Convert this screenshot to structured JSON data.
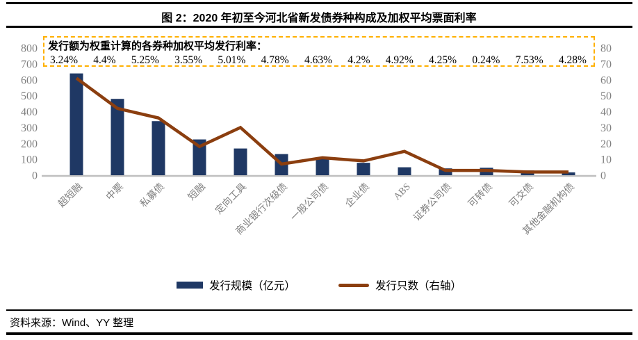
{
  "figure": {
    "title": "图 2：2020 年初至今河北省新发债券种构成及加权平均票面利率",
    "source": "资料来源：Wind、YY 整理"
  },
  "annotation": {
    "title": "发行额为权重计算的各券种加权平均发行利率：",
    "rates": [
      "3.24%",
      "4.4%",
      "5.25%",
      "3.55%",
      "5.01%",
      "4.78%",
      "4.63%",
      "4.2%",
      "4.92%",
      "4.25%",
      "0.24%",
      "7.53%",
      "4.28%"
    ]
  },
  "legend": [
    {
      "label": "发行规模（亿元）",
      "type": "bar",
      "color": "#1F3864"
    },
    {
      "label": "发行只数（右轴）",
      "type": "line",
      "color": "#8B3E0F"
    }
  ],
  "chart_data": {
    "type": "bar",
    "subtype": "bar-line-combo",
    "categories": [
      "超短融",
      "中票",
      "私募债",
      "短融",
      "定向工具",
      "商业银行次级债",
      "一般公司债",
      "企业债",
      "ABS",
      "证券公司债",
      "可转债",
      "可交债",
      "其他金融机构债"
    ],
    "series": [
      {
        "name": "发行规模（亿元）",
        "type": "bar",
        "axis": "left",
        "color": "#1F3864",
        "values": [
          640,
          480,
          340,
          225,
          168,
          133,
          105,
          78,
          50,
          43,
          47,
          30,
          18
        ]
      },
      {
        "name": "发行只数（右轴）",
        "type": "line",
        "axis": "right",
        "color": "#8B3E0F",
        "values": [
          61,
          42,
          36,
          18,
          30,
          7,
          11,
          9,
          15,
          3,
          3,
          2,
          2
        ]
      }
    ],
    "left_axis": {
      "min": 0,
      "max": 800,
      "ticks": [
        0,
        100,
        200,
        300,
        400,
        500,
        600,
        700,
        800
      ]
    },
    "right_axis": {
      "min": 0,
      "max": 80,
      "ticks": [
        0,
        10,
        20,
        30,
        40,
        50,
        60,
        70,
        80
      ]
    },
    "grid": false,
    "legend_position": "bottom",
    "weighted_avg_coupon_rates_by_type": {
      "超短融": "3.24%",
      "中票": "4.4%",
      "私募债": "5.25%",
      "短融": "3.55%",
      "定向工具": "5.01%",
      "商业银行次级债": "4.78%",
      "一般公司债": "4.63%",
      "企业债": "4.2%",
      "ABS": "4.92%",
      "证券公司债": "4.25%",
      "可转债": "0.24%",
      "可交债": "7.53%",
      "其他金融机构债": "4.28%"
    }
  },
  "colors": {
    "bar": "#1F3864",
    "line": "#8B3E0F",
    "annotation_border": "#FFB000",
    "axis_text": "#7F7F7F",
    "baseline": "#BFBFBF",
    "rule": "#000000"
  }
}
